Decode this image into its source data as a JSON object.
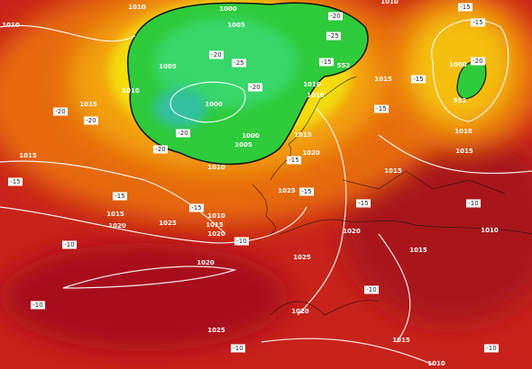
{
  "map": {
    "labels": [
      "1010",
      "1010",
      "1000",
      "1005",
      "1005",
      "1010",
      "1015",
      "1000",
      "1000",
      "1005",
      "1015",
      "1010",
      "1010",
      "1015",
      "1020",
      "1025",
      "1015",
      "1020",
      "1025",
      "1020",
      "1015",
      "1010",
      "1010",
      "1015",
      "1010",
      "1015",
      "1015",
      "1020",
      "1015",
      "1010",
      "1025",
      "1020",
      "1020",
      "1025",
      "1015",
      "1010",
      "1000",
      "1010",
      "-20",
      "-15",
      "-15",
      "-25",
      "-20",
      "-20",
      "-25",
      "-20",
      "-20",
      "-20",
      "-20",
      "-15",
      "-20",
      "-15",
      "-15",
      "-15",
      "-15",
      "-15",
      "-15",
      "-15",
      "-15",
      "-10",
      "-10",
      "-10",
      "-10",
      "-10",
      "-10",
      "-10",
      "552",
      "552"
    ]
  }
}
